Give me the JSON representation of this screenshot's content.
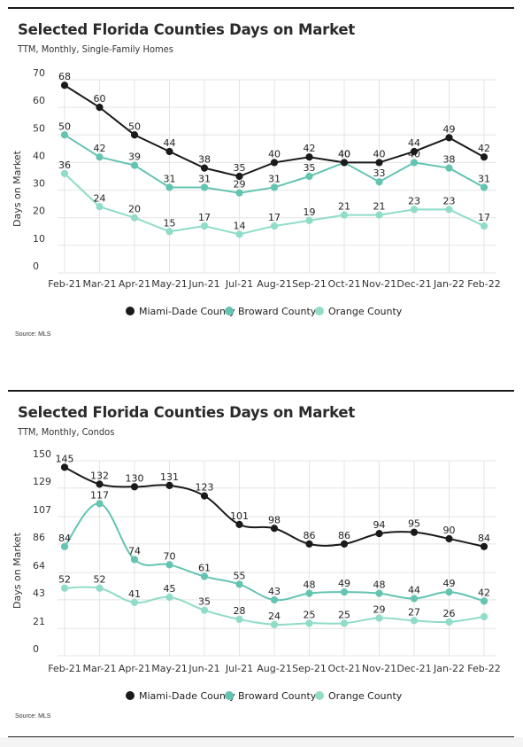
{
  "colors": {
    "miami": "#1a1a1a",
    "broward": "#63c4b1",
    "orange": "#8fdcc8",
    "grid": "#e4e4e4",
    "rule": "#1a1a1a"
  },
  "chart_data": [
    {
      "type": "line",
      "title": "Selected Florida Counties Days on Market",
      "subtitle": "TTM, Monthly, Single-Family Homes",
      "ylabel": "Days on Market",
      "xlabel": "",
      "source": "Source: MLS",
      "categories": [
        "Feb-21",
        "Mar-21",
        "Apr-21",
        "May-21",
        "Jun-21",
        "Jul-21",
        "Aug-21",
        "Sep-21",
        "Oct-21",
        "Nov-21",
        "Dec-21",
        "Jan-22",
        "Feb-22"
      ],
      "yticks": [
        0,
        10,
        20,
        30,
        40,
        50,
        60,
        70
      ],
      "ylim": [
        0,
        70
      ],
      "grid": true,
      "legend_position": "bottom",
      "smooth": false,
      "series": [
        {
          "name": "Miami-Dade County",
          "color_key": "miami",
          "values": [
            68,
            60,
            50,
            44,
            38,
            35,
            40,
            42,
            40,
            40,
            44,
            49,
            42
          ]
        },
        {
          "name": "Broward County",
          "color_key": "broward",
          "values": [
            50,
            42,
            39,
            31,
            31,
            29,
            31,
            35,
            40,
            33,
            40,
            38,
            31
          ]
        },
        {
          "name": "Orange County",
          "color_key": "orange",
          "values": [
            36,
            24,
            20,
            15,
            17,
            14,
            17,
            19,
            21,
            21,
            23,
            23,
            17
          ]
        }
      ]
    },
    {
      "type": "line",
      "title": "Selected Florida Counties Days on Market",
      "subtitle": "TTM, Monthly, Condos",
      "ylabel": "Days on Market",
      "xlabel": "",
      "source": "Source: MLS",
      "categories": [
        "Feb-21",
        "Mar-21",
        "Apr-21",
        "May-21",
        "Jun-21",
        "Jul-21",
        "Aug-21",
        "Sep-21",
        "Oct-21",
        "Nov-21",
        "Dec-21",
        "Jan-22",
        "Feb-22"
      ],
      "yticks": [
        0,
        21,
        43,
        64,
        86,
        107,
        129,
        150
      ],
      "ylim": [
        0,
        150
      ],
      "grid": true,
      "legend_position": "bottom",
      "smooth": true,
      "series": [
        {
          "name": "Miami-Dade County",
          "color_key": "miami",
          "values": [
            145,
            132,
            130,
            131,
            123,
            101,
            98,
            86,
            86,
            94,
            95,
            90,
            84
          ]
        },
        {
          "name": "Broward County",
          "color_key": "broward",
          "values": [
            84,
            117,
            74,
            70,
            61,
            55,
            43,
            48,
            49,
            48,
            44,
            49,
            42
          ]
        },
        {
          "name": "Orange County",
          "color_key": "orange",
          "values": [
            52,
            52,
            41,
            45,
            35,
            28,
            24,
            25,
            25,
            29,
            27,
            26,
            30
          ]
        }
      ],
      "hidden_labels": {
        "Orange County": [
          12
        ]
      }
    }
  ]
}
